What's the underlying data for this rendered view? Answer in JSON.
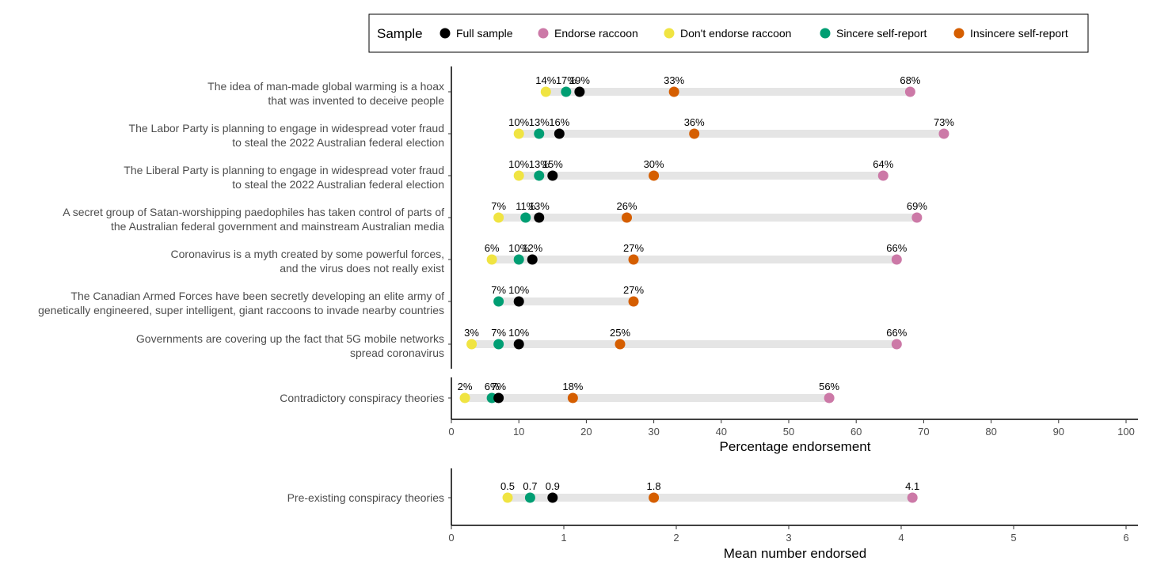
{
  "chart_data": [
    {
      "type": "dot-range",
      "legend": {
        "title": "Sample",
        "placement": "top",
        "entries": [
          {
            "key": "full",
            "label": "Full sample",
            "color": "#000000"
          },
          {
            "key": "endorse",
            "label": "Endorse raccoon",
            "color": "#CC79A7"
          },
          {
            "key": "dont",
            "label": "Don't endorse raccoon",
            "color": "#F0E442"
          },
          {
            "key": "sincere",
            "label": "Sincere self-report",
            "color": "#009E73"
          },
          {
            "key": "insincere",
            "label": "Insincere self-report",
            "color": "#D55E00"
          }
        ]
      },
      "xlabel": "Percentage endorsement",
      "xlim": [
        0,
        100
      ],
      "xticks": [
        "0",
        "10",
        "20",
        "30",
        "40",
        "50",
        "60",
        "70",
        "80",
        "90",
        "100"
      ],
      "grid": false,
      "panels": [
        {
          "rows": [
            {
              "label": [
                "The idea of man-made global warming is a hoax",
                "that was invented to deceive people"
              ],
              "points": [
                {
                  "series": "dont",
                  "value": 14,
                  "text": "14%"
                },
                {
                  "series": "sincere",
                  "value": 17,
                  "text": "17%"
                },
                {
                  "series": "full",
                  "value": 19,
                  "text": "19%"
                },
                {
                  "series": "insincere",
                  "value": 33,
                  "text": "33%"
                },
                {
                  "series": "endorse",
                  "value": 68,
                  "text": "68%"
                }
              ]
            },
            {
              "label": [
                "The Labor Party is planning to engage in widespread voter fraud",
                "to steal the 2022 Australian federal election"
              ],
              "points": [
                {
                  "series": "dont",
                  "value": 10,
                  "text": "10%"
                },
                {
                  "series": "sincere",
                  "value": 13,
                  "text": "13%"
                },
                {
                  "series": "full",
                  "value": 16,
                  "text": "16%"
                },
                {
                  "series": "insincere",
                  "value": 36,
                  "text": "36%"
                },
                {
                  "series": "endorse",
                  "value": 73,
                  "text": "73%"
                }
              ]
            },
            {
              "label": [
                "The Liberal Party is planning to engage in widespread voter fraud",
                "to steal the 2022 Australian federal election"
              ],
              "points": [
                {
                  "series": "dont",
                  "value": 10,
                  "text": "10%"
                },
                {
                  "series": "sincere",
                  "value": 13,
                  "text": "13%"
                },
                {
                  "series": "full",
                  "value": 15,
                  "text": "15%"
                },
                {
                  "series": "insincere",
                  "value": 30,
                  "text": "30%"
                },
                {
                  "series": "endorse",
                  "value": 64,
                  "text": "64%"
                }
              ]
            },
            {
              "label": [
                "A secret group of Satan-worshipping paedophiles has taken control of parts of",
                "the Australian federal government and mainstream Australian media"
              ],
              "points": [
                {
                  "series": "dont",
                  "value": 7,
                  "text": "7%"
                },
                {
                  "series": "sincere",
                  "value": 11,
                  "text": "11%"
                },
                {
                  "series": "full",
                  "value": 13,
                  "text": "13%"
                },
                {
                  "series": "insincere",
                  "value": 26,
                  "text": "26%"
                },
                {
                  "series": "endorse",
                  "value": 69,
                  "text": "69%"
                }
              ]
            },
            {
              "label": [
                "Coronavirus is a myth created by some powerful forces,",
                "and the virus does not really exist"
              ],
              "points": [
                {
                  "series": "dont",
                  "value": 6,
                  "text": "6%"
                },
                {
                  "series": "sincere",
                  "value": 10,
                  "text": "10%"
                },
                {
                  "series": "full",
                  "value": 12,
                  "text": "12%"
                },
                {
                  "series": "insincere",
                  "value": 27,
                  "text": "27%"
                },
                {
                  "series": "endorse",
                  "value": 66,
                  "text": "66%"
                }
              ]
            },
            {
              "label": [
                "The Canadian Armed Forces have been secretly developing an elite army of",
                "genetically engineered, super intelligent, giant raccoons to invade nearby countries"
              ],
              "points": [
                {
                  "series": "sincere",
                  "value": 7,
                  "text": "7%"
                },
                {
                  "series": "full",
                  "value": 10,
                  "text": "10%"
                },
                {
                  "series": "insincere",
                  "value": 27,
                  "text": "27%"
                }
              ]
            },
            {
              "label": [
                "Governments are covering up the fact that 5G mobile networks",
                "spread coronavirus"
              ],
              "points": [
                {
                  "series": "dont",
                  "value": 3,
                  "text": "3%"
                },
                {
                  "series": "sincere",
                  "value": 7,
                  "text": "7%"
                },
                {
                  "series": "full",
                  "value": 10,
                  "text": "10%"
                },
                {
                  "series": "insincere",
                  "value": 25,
                  "text": "25%"
                },
                {
                  "series": "endorse",
                  "value": 66,
                  "text": "66%"
                }
              ]
            }
          ]
        },
        {
          "rows": [
            {
              "label": [
                "Contradictory conspiracy theories"
              ],
              "points": [
                {
                  "series": "dont",
                  "value": 2,
                  "text": "2%"
                },
                {
                  "series": "sincere",
                  "value": 6,
                  "text": "6%"
                },
                {
                  "series": "full",
                  "value": 7,
                  "text": "7%"
                },
                {
                  "series": "insincere",
                  "value": 18,
                  "text": "18%"
                },
                {
                  "series": "endorse",
                  "value": 56,
                  "text": "56%"
                }
              ]
            }
          ]
        }
      ]
    },
    {
      "type": "dot-range",
      "xlabel": "Mean number endorsed",
      "xlim": [
        0,
        6
      ],
      "xticks": [
        "0",
        "1",
        "2",
        "3",
        "4",
        "5",
        "6"
      ],
      "grid": false,
      "panels": [
        {
          "rows": [
            {
              "label": [
                "Pre-existing conspiracy theories"
              ],
              "points": [
                {
                  "series": "dont",
                  "value": 0.5,
                  "text": "0.5"
                },
                {
                  "series": "sincere",
                  "value": 0.7,
                  "text": "0.7"
                },
                {
                  "series": "full",
                  "value": 0.9,
                  "text": "0.9"
                },
                {
                  "series": "insincere",
                  "value": 1.8,
                  "text": "1.8"
                },
                {
                  "series": "endorse",
                  "value": 4.1,
                  "text": "4.1"
                }
              ]
            }
          ]
        }
      ]
    }
  ]
}
